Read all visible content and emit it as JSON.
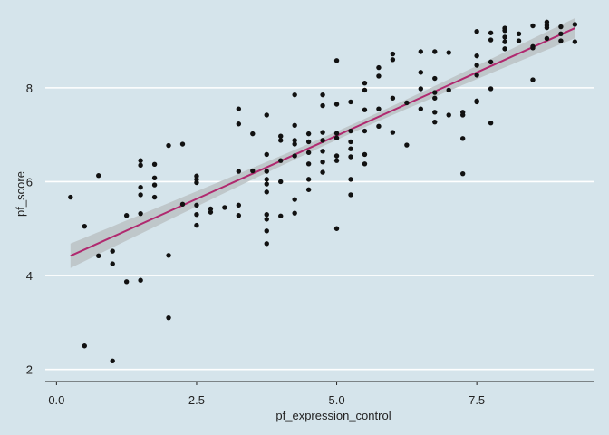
{
  "chart_data": {
    "type": "scatter",
    "title": "",
    "xlabel": "pf_expression_control",
    "ylabel": "pf_score",
    "xlim": [
      -0.2,
      9.6
    ],
    "ylim": [
      1.8,
      9.6
    ],
    "xticks": [
      0.0,
      2.5,
      5.0,
      7.5
    ],
    "xtick_labels": [
      "0.0",
      "2.5",
      "5.0",
      "7.5"
    ],
    "yticks": [
      2,
      4,
      6,
      8
    ],
    "ytick_labels": [
      "2",
      "4",
      "6",
      "8"
    ],
    "grid": "horizontal major lines",
    "colors": {
      "background": "#d5e4eb",
      "grid": "#ffffff",
      "points": "#111111",
      "fit_line": "#b0296f",
      "ci_band": "#bcc3c7"
    },
    "points": [
      [
        0.25,
        5.67
      ],
      [
        0.5,
        5.05
      ],
      [
        0.5,
        2.5
      ],
      [
        0.75,
        6.13
      ],
      [
        0.75,
        4.42
      ],
      [
        1.0,
        4.25
      ],
      [
        1.0,
        4.52
      ],
      [
        1.0,
        2.18
      ],
      [
        1.25,
        3.87
      ],
      [
        1.25,
        5.28
      ],
      [
        1.5,
        6.45
      ],
      [
        1.5,
        6.35
      ],
      [
        1.5,
        5.88
      ],
      [
        1.5,
        5.72
      ],
      [
        1.5,
        5.32
      ],
      [
        1.5,
        3.9
      ],
      [
        1.75,
        6.37
      ],
      [
        1.75,
        6.08
      ],
      [
        1.75,
        5.93
      ],
      [
        1.75,
        5.67
      ],
      [
        2.0,
        6.77
      ],
      [
        2.0,
        4.43
      ],
      [
        2.0,
        3.1
      ],
      [
        2.25,
        6.8
      ],
      [
        2.25,
        5.52
      ],
      [
        2.5,
        6.12
      ],
      [
        2.5,
        6.05
      ],
      [
        2.5,
        5.98
      ],
      [
        2.5,
        5.5
      ],
      [
        2.5,
        5.3
      ],
      [
        2.5,
        5.07
      ],
      [
        2.75,
        5.42
      ],
      [
        2.75,
        5.35
      ],
      [
        3.0,
        5.45
      ],
      [
        3.25,
        7.55
      ],
      [
        3.25,
        7.23
      ],
      [
        3.25,
        6.22
      ],
      [
        3.25,
        5.5
      ],
      [
        3.25,
        5.28
      ],
      [
        3.5,
        7.02
      ],
      [
        3.5,
        6.23
      ],
      [
        3.75,
        7.42
      ],
      [
        3.75,
        6.58
      ],
      [
        3.75,
        6.22
      ],
      [
        3.75,
        6.05
      ],
      [
        3.75,
        5.95
      ],
      [
        3.75,
        5.78
      ],
      [
        3.75,
        5.3
      ],
      [
        3.75,
        5.2
      ],
      [
        3.75,
        4.95
      ],
      [
        3.75,
        4.68
      ],
      [
        4.0,
        6.97
      ],
      [
        4.0,
        6.88
      ],
      [
        4.0,
        6.45
      ],
      [
        4.0,
        6.0
      ],
      [
        4.0,
        5.27
      ],
      [
        4.25,
        7.85
      ],
      [
        4.25,
        7.2
      ],
      [
        4.25,
        6.88
      ],
      [
        4.25,
        6.8
      ],
      [
        4.25,
        6.55
      ],
      [
        4.25,
        5.62
      ],
      [
        4.25,
        5.33
      ],
      [
        4.5,
        7.02
      ],
      [
        4.5,
        6.85
      ],
      [
        4.5,
        6.62
      ],
      [
        4.5,
        6.38
      ],
      [
        4.5,
        6.05
      ],
      [
        4.5,
        5.83
      ],
      [
        4.75,
        7.85
      ],
      [
        4.75,
        7.62
      ],
      [
        4.75,
        7.05
      ],
      [
        4.75,
        6.88
      ],
      [
        4.75,
        6.65
      ],
      [
        4.75,
        6.42
      ],
      [
        4.75,
        6.2
      ],
      [
        5.0,
        8.58
      ],
      [
        5.0,
        7.65
      ],
      [
        5.0,
        7.03
      ],
      [
        5.0,
        6.93
      ],
      [
        5.0,
        6.55
      ],
      [
        5.0,
        6.45
      ],
      [
        5.0,
        5.0
      ],
      [
        5.25,
        7.7
      ],
      [
        5.25,
        7.08
      ],
      [
        5.25,
        6.85
      ],
      [
        5.25,
        6.7
      ],
      [
        5.25,
        6.53
      ],
      [
        5.25,
        6.05
      ],
      [
        5.25,
        5.72
      ],
      [
        5.5,
        8.1
      ],
      [
        5.5,
        7.95
      ],
      [
        5.5,
        7.53
      ],
      [
        5.5,
        7.08
      ],
      [
        5.5,
        6.58
      ],
      [
        5.5,
        6.38
      ],
      [
        5.75,
        8.43
      ],
      [
        5.75,
        8.25
      ],
      [
        5.75,
        7.55
      ],
      [
        5.75,
        7.18
      ],
      [
        6.0,
        8.72
      ],
      [
        6.0,
        8.6
      ],
      [
        6.0,
        7.78
      ],
      [
        6.0,
        7.05
      ],
      [
        6.25,
        7.68
      ],
      [
        6.25,
        6.78
      ],
      [
        6.5,
        8.77
      ],
      [
        6.5,
        8.33
      ],
      [
        6.5,
        7.98
      ],
      [
        6.5,
        7.55
      ],
      [
        6.75,
        8.77
      ],
      [
        6.75,
        8.2
      ],
      [
        6.75,
        7.9
      ],
      [
        6.75,
        7.78
      ],
      [
        6.75,
        7.48
      ],
      [
        6.75,
        7.27
      ],
      [
        7.0,
        8.75
      ],
      [
        7.0,
        7.95
      ],
      [
        7.0,
        7.42
      ],
      [
        7.25,
        7.48
      ],
      [
        7.25,
        7.42
      ],
      [
        7.25,
        6.92
      ],
      [
        7.25,
        6.17
      ],
      [
        7.5,
        9.2
      ],
      [
        7.5,
        8.68
      ],
      [
        7.5,
        8.48
      ],
      [
        7.5,
        8.27
      ],
      [
        7.5,
        7.72
      ],
      [
        7.5,
        7.7
      ],
      [
        7.75,
        9.17
      ],
      [
        7.75,
        9.02
      ],
      [
        7.75,
        8.55
      ],
      [
        7.75,
        7.98
      ],
      [
        7.75,
        7.25
      ],
      [
        8.0,
        9.27
      ],
      [
        8.0,
        9.22
      ],
      [
        8.0,
        9.08
      ],
      [
        8.0,
        8.98
      ],
      [
        8.0,
        8.83
      ],
      [
        8.25,
        9.15
      ],
      [
        8.25,
        9.0
      ],
      [
        8.5,
        9.32
      ],
      [
        8.5,
        8.88
      ],
      [
        8.5,
        8.85
      ],
      [
        8.5,
        8.17
      ],
      [
        8.75,
        9.4
      ],
      [
        8.75,
        9.33
      ],
      [
        8.75,
        9.28
      ],
      [
        8.75,
        9.05
      ],
      [
        9.0,
        9.3
      ],
      [
        9.0,
        9.15
      ],
      [
        9.0,
        9.0
      ],
      [
        9.25,
        9.35
      ],
      [
        9.25,
        8.98
      ]
    ],
    "fit": {
      "method": "linear",
      "x_range": [
        0.25,
        9.25
      ],
      "y_at_range": [
        4.42,
        9.27
      ],
      "ci_halfwidth_ends": 0.26,
      "ci_halfwidth_center": 0.09,
      "x_center": 5.25
    }
  }
}
